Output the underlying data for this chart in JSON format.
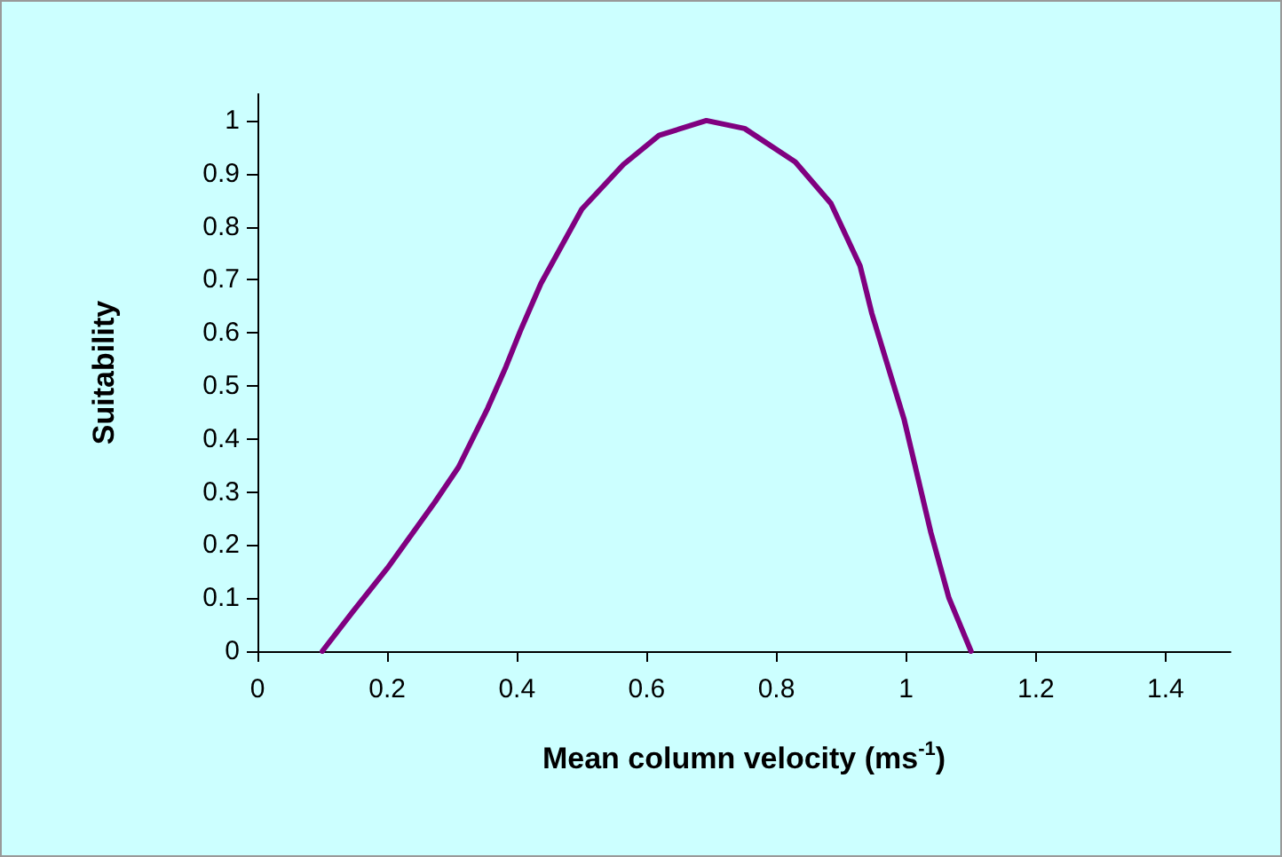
{
  "chart_data": {
    "type": "line",
    "xlabel": "Mean column velocity (ms$^{-1}$)",
    "ylabel": "Suitability",
    "series": [
      {
        "color": "#800080",
        "x": [
          0.1,
          0.146,
          0.2,
          0.273,
          0.31,
          0.355,
          0.383,
          0.405,
          0.437,
          0.5,
          0.564,
          0.619,
          0.692,
          0.751,
          0.829,
          0.884,
          0.929,
          0.947,
          0.997,
          1.038,
          1.066,
          1.1
        ],
        "values": [
          0,
          0.073,
          0.156,
          0.28,
          0.347,
          0.458,
          0.536,
          0.603,
          0.693,
          0.833,
          0.917,
          0.972,
          1.0,
          0.985,
          0.922,
          0.844,
          0.726,
          0.637,
          0.436,
          0.224,
          0.1,
          0
        ]
      }
    ],
    "xlim": [
      0,
      1.5
    ],
    "xticks": [
      0,
      0.2,
      0.4,
      0.6,
      0.8,
      1,
      1.2,
      1.4
    ],
    "ylim": [
      0,
      1.05
    ],
    "yticks": [
      0,
      0.1,
      0.2,
      0.3,
      0.4,
      0.5,
      0.6,
      0.7,
      0.8,
      0.9,
      1
    ],
    "grid": false,
    "marker": "none",
    "line_style": "solid"
  }
}
